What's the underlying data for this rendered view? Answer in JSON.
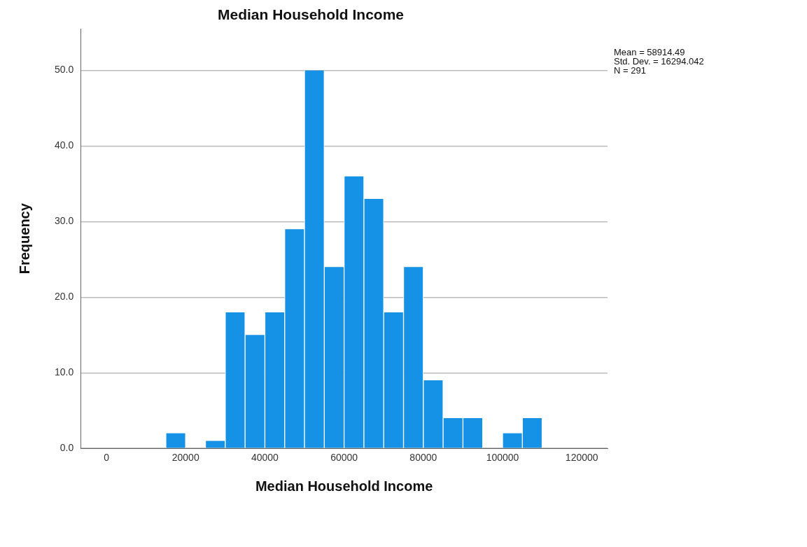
{
  "chart_data": {
    "type": "histogram",
    "title": "Median Household Income",
    "xlabel": "Median Household Income",
    "ylabel": "Frequency",
    "bins": [
      15000,
      20000,
      25000,
      30000,
      35000,
      40000,
      45000,
      50000,
      55000,
      60000,
      65000,
      70000,
      75000,
      80000,
      85000,
      90000,
      95000,
      100000,
      105000,
      110000
    ],
    "values": [
      2,
      0,
      1,
      18,
      15,
      18,
      29,
      50,
      24,
      36,
      33,
      18,
      24,
      9,
      4,
      4,
      0,
      2,
      4
    ],
    "color": "#1592e6",
    "xlim": [
      -6500,
      126500
    ],
    "xticks": [
      0,
      20000,
      40000,
      60000,
      80000,
      100000,
      120000
    ],
    "ylim": [
      0,
      55.5
    ],
    "yticks": [
      {
        "value": 0,
        "label": "0.0"
      },
      {
        "value": 10,
        "label": "10.0"
      },
      {
        "value": 20,
        "label": "20.0"
      },
      {
        "value": 30,
        "label": "30.0"
      },
      {
        "value": 40,
        "label": "40.0"
      },
      {
        "value": 50,
        "label": "50.0"
      }
    ],
    "grid": "y",
    "annotations": [
      "Mean = 58914.49",
      "Std. Dev. = 16294.042",
      "N = 291"
    ]
  }
}
